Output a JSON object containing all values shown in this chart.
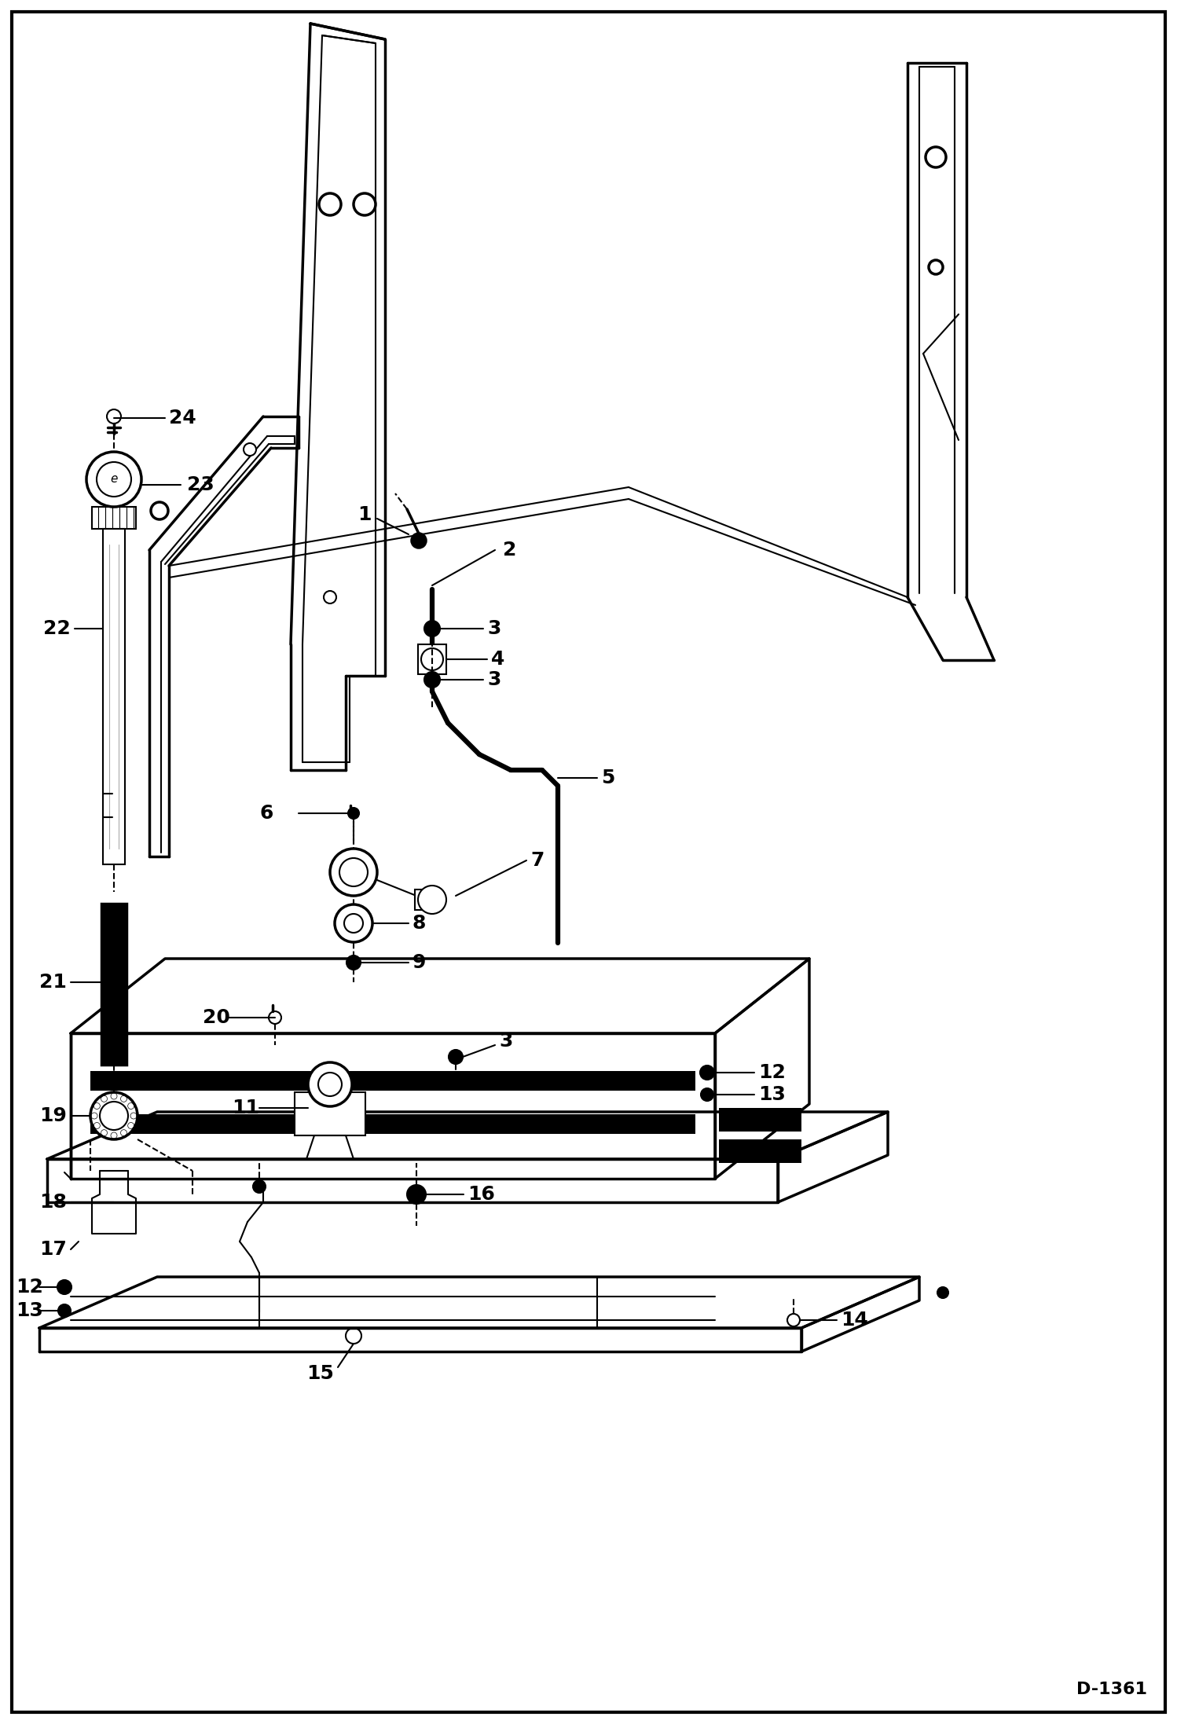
{
  "bg_color": "#ffffff",
  "border_color": "#000000",
  "line_color": "#000000",
  "diagram_id": "D-1361",
  "figsize": [
    14.98,
    21.94
  ],
  "dpi": 100
}
